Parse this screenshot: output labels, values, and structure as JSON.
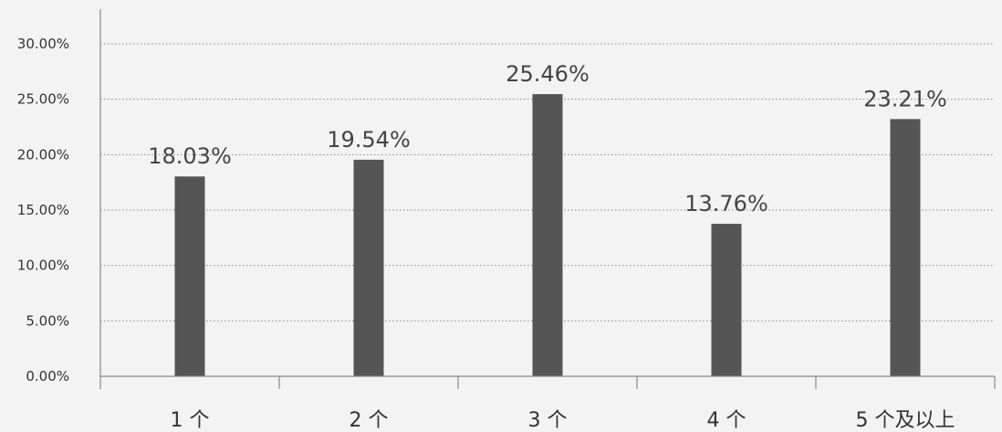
{
  "chart_data": {
    "type": "bar",
    "categories": [
      "1 个",
      "2 个",
      "3 个",
      "4 个",
      "5 个及以上"
    ],
    "values": [
      18.03,
      19.54,
      25.46,
      13.76,
      23.21
    ],
    "value_labels": [
      "18.03%",
      "19.54%",
      "25.46%",
      "13.76%",
      "23.21%"
    ],
    "y_ticks": [
      "0.00%",
      "5.00%",
      "10.00%",
      "15.00%",
      "20.00%",
      "25.00%",
      "30.00%"
    ],
    "ylim": [
      0,
      30
    ],
    "grid": true,
    "bar_color": "#555555",
    "title": "",
    "xlabel": "",
    "ylabel": ""
  }
}
